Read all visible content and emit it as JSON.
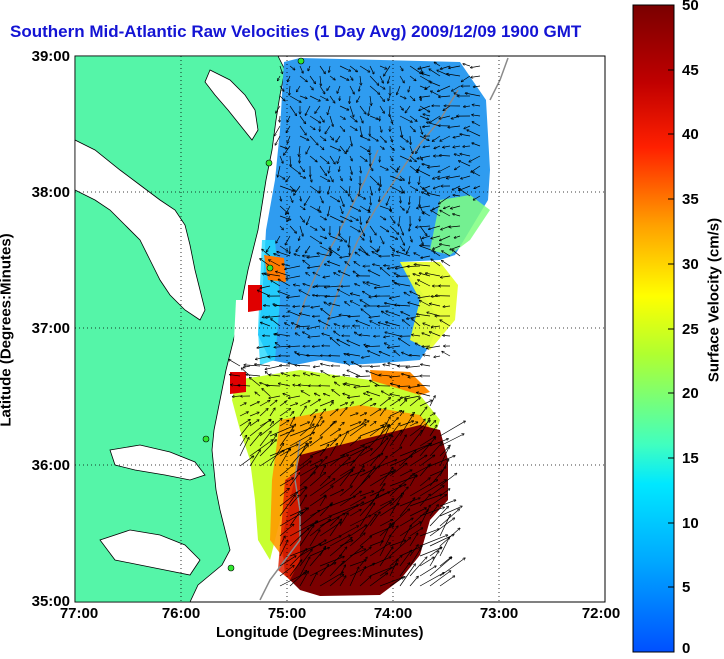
{
  "title": "Southern Mid-Atlantic Raw Velocities (1 Day Avg) 2009/12/09 1900 GMT",
  "xlabel": "Longitude (Degrees:Minutes)",
  "ylabel": "Latitude (Degrees:Minutes)",
  "x_ticks": [
    "77:00",
    "76:00",
    "75:00",
    "74:00",
    "73:00",
    "72:00"
  ],
  "y_ticks": [
    "39:00",
    "38:00",
    "37:00",
    "36:00",
    "35:00"
  ],
  "colorbar": {
    "label": "Surface Velocity (cm/s)",
    "ticks": [
      "50",
      "45",
      "40",
      "35",
      "30",
      "25",
      "20",
      "15",
      "10",
      "5",
      "0"
    ],
    "range": [
      0,
      50
    ],
    "colors": [
      "#0050ff",
      "#00c8ff",
      "#40ffc0",
      "#c8ff20",
      "#ffd000",
      "#ff6000",
      "#e00000",
      "#7a0000"
    ]
  },
  "colors": {
    "land": "#55f5a8",
    "coast": "#000000",
    "grid": "#000000",
    "title": "#1414d4",
    "arrows": "#000000"
  },
  "map": {
    "lon_range": [
      -77,
      -72
    ],
    "lat_range": [
      35,
      39
    ],
    "grid": true,
    "station_markers": 5
  }
}
